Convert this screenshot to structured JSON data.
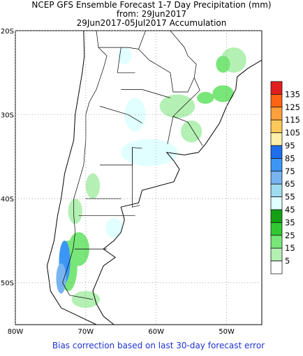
{
  "map": {
    "title": "NCEP GFS Ensemble Forecast 1-7 Day Precipitation (mm)",
    "subtitle": "from: 29Jun2017",
    "period": "29Jun2017-05Jul2017 Accumulation",
    "footer": "Bias correction based on last 30-day forecast error",
    "lonlim": [
      -80,
      -45
    ],
    "latlim": [
      -55,
      -20
    ],
    "lon_ticks": [
      {
        "value": -80,
        "label": "80W"
      },
      {
        "value": -70,
        "label": "70W"
      },
      {
        "value": -60,
        "label": "60W"
      },
      {
        "value": -50,
        "label": "50W"
      }
    ],
    "lat_ticks": [
      {
        "value": -20,
        "label": "20S"
      },
      {
        "value": -30,
        "label": "30S"
      },
      {
        "value": -40,
        "label": "40S"
      },
      {
        "value": -50,
        "label": "50S"
      }
    ],
    "colorbar": {
      "levels": [
        135,
        125,
        115,
        105,
        95,
        85,
        75,
        65,
        55,
        45,
        35,
        25,
        15,
        5
      ],
      "colors": [
        "#e11e1e",
        "#ff6414",
        "#ffa03c",
        "#ffc85a",
        "#fff0aa",
        "#1e6eeb",
        "#3c96f5",
        "#78b4f0",
        "#a0dcf0",
        "#e1ffff",
        "#14a014",
        "#32c832",
        "#78e678",
        "#b4f0b4",
        "#ffffff"
      ]
    }
  }
}
